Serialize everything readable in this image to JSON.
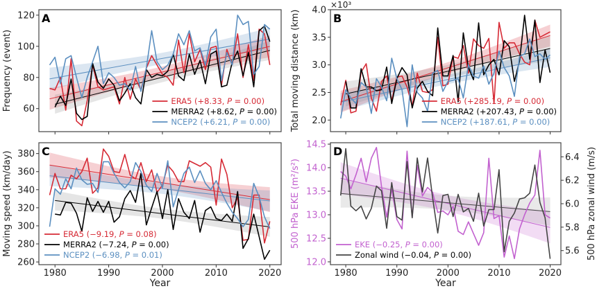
{
  "chart_data": [
    {
      "panel": "A",
      "type": "line",
      "ylabel": "Frequency (event)",
      "xlabel": "",
      "xlim": [
        1977,
        2022.1
      ],
      "ylim": [
        45.2,
        123.5
      ],
      "xticks": [
        1980,
        1990,
        2000,
        2010,
        2020
      ],
      "show_xtick_labels": false,
      "yticks": [
        60,
        80,
        100,
        120
      ],
      "ytick_labels": [
        "60",
        "80",
        "100",
        "120"
      ],
      "legend_position": "bottom-right",
      "x_start": 1979,
      "series": [
        {
          "name": "ERA5",
          "stat": "+8.33",
          "p": "0.00",
          "color": "#d62a35",
          "values": [
            73,
            72,
            80,
            59,
            92,
            52,
            49,
            65,
            88,
            74,
            72,
            73,
            74,
            63,
            80,
            66,
            79,
            72,
            86,
            94,
            88,
            82,
            80,
            75,
            104,
            83,
            108,
            90,
            98,
            85,
            99,
            100,
            75,
            98,
            88,
            108,
            80,
            101,
            78,
            111,
            108,
            88
          ]
        },
        {
          "name": "MERRA2",
          "stat": "+8.62",
          "p": "0.00",
          "color": "#000000",
          "values": [
            null,
            61,
            68,
            62,
            79,
            57,
            53,
            55,
            89,
            77,
            73,
            79,
            75,
            65,
            70,
            76,
            67,
            63,
            85,
            80,
            82,
            81,
            84,
            95,
            81,
            78,
            95,
            82,
            91,
            76,
            95,
            97,
            74,
            75,
            90,
            97,
            81,
            96,
            74,
            110,
            113,
            103
          ]
        },
        {
          "name": "NCEP2",
          "stat": "+6.21",
          "p": "0.00",
          "color": "#5b8fc0",
          "values": [
            88,
            93,
            76,
            92,
            94,
            80,
            67,
            80,
            90,
            100,
            76,
            83,
            80,
            75,
            76,
            72,
            87,
            71,
            86,
            110,
            90,
            85,
            88,
            95,
            108,
            101,
            110,
            97,
            99,
            88,
            106,
            111,
            78,
            96,
            88,
            120,
            114,
            116,
            82,
            87,
            114,
            111
          ]
        }
      ]
    },
    {
      "panel": "B",
      "type": "line",
      "ylabel": "Total moving distance (km)",
      "y_offset_label": "×10³",
      "xlabel": "",
      "xlim": [
        1977,
        2022.1
      ],
      "ylim": [
        1.79,
        4.0
      ],
      "xticks": [
        1980,
        1990,
        2000,
        2010,
        2020
      ],
      "show_xtick_labels": false,
      "yticks": [
        2.0,
        2.5,
        3.0,
        3.5,
        4.0
      ],
      "ytick_labels": [
        "2.0",
        "2.5",
        "3.0",
        "3.5",
        "4.0"
      ],
      "legend_position": "bottom-right",
      "x_start": 1979,
      "series": [
        {
          "name": "ERA5",
          "stat": "+285.19",
          "p": "0.00",
          "color": "#d62a35",
          "values": [
            2.27,
            2.72,
            2.13,
            2.16,
            2.87,
            3.02,
            2.4,
            2.16,
            2.7,
            2.8,
            2.35,
            2.78,
            2.8,
            2.6,
            2.25,
            2.85,
            2.52,
            2.5,
            2.55,
            3.5,
            2.62,
            2.65,
            3.15,
            3.12,
            3.35,
            2.85,
            3.47,
            3.35,
            3.3,
            3.48,
            2.3,
            3.77,
            3.3,
            3.4,
            3.4,
            3.2,
            3.05,
            3.0,
            3.81,
            3.5,
            3.55,
            3.6
          ]
        },
        {
          "name": "MERRA2",
          "stat": "+207.43",
          "p": "0.00",
          "color": "#000000",
          "values": [
            null,
            2.7,
            2.22,
            2.22,
            2.93,
            2.6,
            2.6,
            2.53,
            2.55,
            2.96,
            2.3,
            2.75,
            2.95,
            2.82,
            2.22,
            2.58,
            2.7,
            2.52,
            2.44,
            3.67,
            2.8,
            2.8,
            3.17,
            2.33,
            3.58,
            2.95,
            2.73,
            3.76,
            2.82,
            3.0,
            3.1,
            2.82,
            3.44,
            3.33,
            2.7,
            3.07,
            3.9,
            3.1,
            3.81,
            2.68,
            3.27,
            2.86
          ]
        },
        {
          "name": "NCEP2",
          "stat": "+187.61",
          "p": "0.00",
          "color": "#5b8fc0",
          "values": [
            2.03,
            2.55,
            2.4,
            2.3,
            2.68,
            2.6,
            2.12,
            2.75,
            2.6,
            2.35,
            3.12,
            2.75,
            2.55,
            1.88,
            3.0,
            2.5,
            2.4,
            2.16,
            2.85,
            2.9,
            2.52,
            2.7,
            2.72,
            2.75,
            2.4,
            3.0,
            2.8,
            2.76,
            2.98,
            2.65,
            2.85,
            3.25,
            2.95,
            2.8,
            2.43,
            3.15,
            3.2,
            3.47,
            3.15,
            3.2,
            3.1,
            3.18
          ]
        }
      ]
    },
    {
      "panel": "C",
      "type": "line",
      "ylabel": "Moving speed (km/day)",
      "xlabel": "Year",
      "xlim": [
        1977,
        2022.1
      ],
      "ylim": [
        257,
        392
      ],
      "xticks": [
        1980,
        1990,
        2000,
        2010,
        2020
      ],
      "show_xtick_labels": true,
      "xtick_labels": [
        "1980",
        "1990",
        "2000",
        "2010",
        "2020"
      ],
      "yticks": [
        260,
        280,
        300,
        320,
        340,
        360,
        380
      ],
      "ytick_labels": [
        "260",
        "280",
        "300",
        "320",
        "340",
        "360",
        "380"
      ],
      "legend_position": "bottom-left",
      "x_start": 1979,
      "series": [
        {
          "name": "ERA5",
          "stat": "−9.19",
          "p": "0.08",
          "color": "#d62a35",
          "values": [
            334,
            358,
            341,
            341,
            356,
            352,
            360,
            375,
            336,
            342,
            385,
            377,
            360,
            359,
            379,
            356,
            352,
            370,
            349,
            362,
            337,
            345,
            367,
            360,
            349,
            349,
            372,
            369,
            366,
            370,
            365,
            323,
            374,
            357,
            320,
            331,
            284,
            285,
            334,
            334,
            281,
            305
          ]
        },
        {
          "name": "MERRA2",
          "stat": "−7.24",
          "p": "0.00",
          "color": "#000000",
          "values": [
            null,
            313,
            312,
            326,
            325,
            314,
            294,
            331,
            316,
            327,
            315,
            327,
            304,
            310,
            330,
            339,
            326,
            358,
            301,
            320,
            338,
            308,
            340,
            296,
            330,
            315,
            308,
            328,
            293,
            317,
            321,
            308,
            306,
            313,
            305,
            338,
            275,
            286,
            313,
            288,
            263,
            273
          ]
        },
        {
          "name": "NCEP2",
          "stat": "−6.98",
          "p": "0.01",
          "color": "#5b8fc0",
          "values": [
            299,
            341,
            335,
            352,
            341,
            364,
            351,
            346,
            347,
            337,
            371,
            371,
            358,
            348,
            342,
            349,
            370,
            360,
            345,
            338,
            358,
            342,
            372,
            321,
            340,
            358,
            365,
            348,
            361,
            347,
            340,
            350,
            337,
            325,
            315,
            308,
            299,
            307,
            347,
            332,
            310,
            297
          ]
        }
      ]
    },
    {
      "panel": "D",
      "type": "line",
      "ylabel": "500 hPa EKE (m²/s²)",
      "ylabel_right": "500 hPa zonal wind (m/s)",
      "xlabel": "Year",
      "xlim": [
        1977,
        2022.1
      ],
      "ylim": [
        11.94,
        14.53
      ],
      "ylim_right": [
        5.48,
        6.52
      ],
      "xticks": [
        1980,
        1990,
        2000,
        2010,
        2020
      ],
      "show_xtick_labels": true,
      "xtick_labels": [
        "1980",
        "1990",
        "2000",
        "2010",
        "2020"
      ],
      "yticks": [
        12.0,
        12.5,
        13.0,
        13.5,
        14.0,
        14.5
      ],
      "ytick_labels": [
        "12.0",
        "12.5",
        "13.0",
        "13.5",
        "14.0",
        "14.5"
      ],
      "yticks_right": [
        5.6,
        5.8,
        6.0,
        6.2,
        6.4
      ],
      "ytick_labels_right": [
        "5.6",
        "5.8",
        "6.0",
        "6.2",
        "6.4"
      ],
      "left_axis_color": "#c261cf",
      "legend_position": "bottom-left",
      "x_start": 1979,
      "series": [
        {
          "name": "EKE",
          "stat": "−0.25",
          "p": "0.00",
          "color": "#c261cf",
          "axis": "left",
          "values": [
            13.92,
            13.82,
            13.55,
            13.85,
            14.2,
            13.7,
            14.2,
            14.43,
            13.6,
            12.95,
            13.55,
            12.9,
            12.7,
            14.35,
            12.95,
            14.05,
            13.4,
            13.58,
            13.48,
            13.05,
            13.08,
            13.0,
            13.18,
            12.65,
            12.58,
            12.85,
            12.6,
            12.35,
            12.62,
            14.2,
            12.92,
            12.98,
            12.1,
            12.55,
            12.07,
            12.7,
            13.0,
            13.25,
            13.42,
            14.37,
            13.0,
            12.93
          ]
        },
        {
          "name": "Zonal wind",
          "stat": "−0.04",
          "p": "0.00",
          "color": "#444444",
          "axis": "right",
          "values": [
            6.07,
            6.47,
            5.98,
            5.94,
            5.98,
            5.87,
            5.96,
            6.15,
            6.11,
            5.79,
            6.18,
            5.89,
            5.86,
            6.36,
            5.88,
            6.39,
            6.1,
            6.39,
            6.05,
            5.75,
            6.07,
            6.08,
            5.89,
            6.08,
            5.93,
            5.96,
            5.85,
            6.09,
            5.81,
            5.95,
            5.95,
            6.29,
            5.59,
            5.85,
            5.92,
            6.04,
            6.05,
            6.09,
            6.33,
            6.01,
            5.88,
            5.53
          ]
        }
      ]
    }
  ]
}
